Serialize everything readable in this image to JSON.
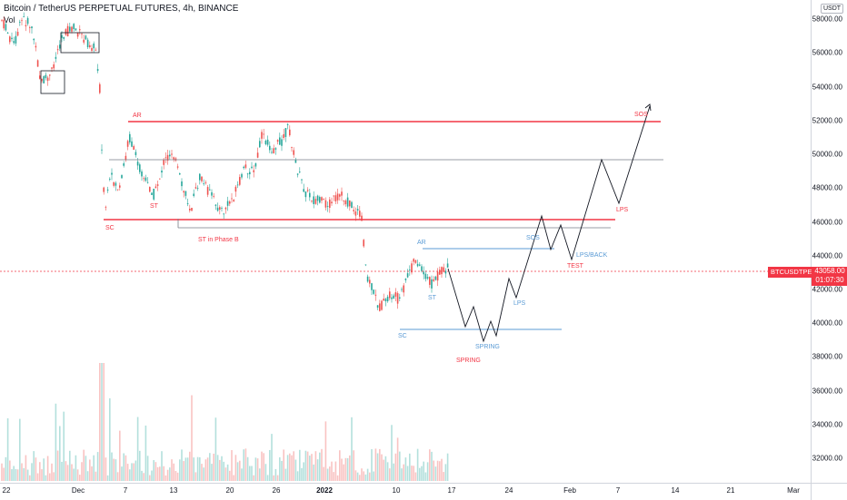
{
  "header": {
    "title": "Bitcoin / TetherUS PERPETUAL FUTURES, 4h, BINANCE",
    "volume_label": "Vol"
  },
  "price_axis": {
    "currency": "USDT",
    "ticks": [
      "58000.00",
      "56000.00",
      "54000.00",
      "52000.00",
      "50000.00",
      "48000.00",
      "46000.00",
      "44000.00",
      "42000.00",
      "40000.00",
      "38000.00",
      "36000.00",
      "34000.00",
      "32000.00"
    ],
    "current_symbol": "BTCUSDTPERP",
    "current_price": "43058.00",
    "countdown": "01:07:30"
  },
  "time_axis": {
    "ticks": [
      "22",
      "Dec",
      "7",
      "13",
      "20",
      "26",
      "2022",
      "10",
      "17",
      "24",
      "Feb",
      "7",
      "14",
      "21",
      "Mar"
    ]
  },
  "annotations": {
    "red": {
      "ar": "AR",
      "sc": "SC",
      "st": "ST",
      "st_phase_b": "ST in Phase B",
      "sos": "SOS",
      "lps": "LPS",
      "test": "TEST",
      "spring": "SPRING"
    },
    "blue": {
      "ar": "AR",
      "st": "ST",
      "sc": "SC",
      "spring": "SPRING",
      "lps": "LPS",
      "sos": "SOS",
      "lps_back": "LPS/BACK"
    }
  },
  "colors": {
    "up": "#26a69a",
    "down": "#ef5350",
    "accent_red": "#f23645",
    "blue": "#5b9bd5",
    "line": "#131722"
  }
}
